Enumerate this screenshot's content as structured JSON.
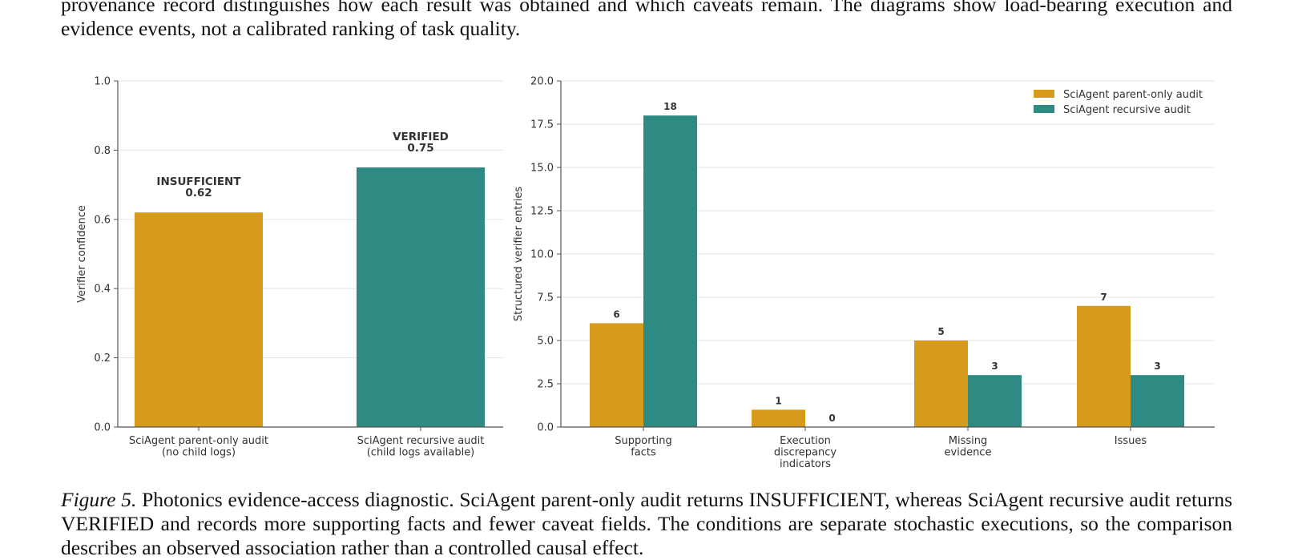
{
  "paper": {
    "top_paragraph": "provenance record distinguishes how each result was obtained and which caveats remain. The diagrams show load-bearing execution and evidence events, not a calibrated ranking of task quality.",
    "caption_label": "Figure 5.",
    "caption_text": "Photonics evidence-access diagnostic. SciAgent parent-only audit returns INSUFFICIENT, whereas SciAgent recursive audit returns VERIFIED and records more supporting facts and fewer caveat fields. The conditions are separate stochastic executions, so the comparison describes an observed association rather than a controlled causal effect."
  },
  "colors": {
    "parent": "#D79B1B",
    "recursive": "#2E8B84",
    "axis": "#555555",
    "grid": "#E6E6E6"
  },
  "chart_data": [
    {
      "type": "bar",
      "ylabel": "Verifier confidence",
      "ylim": [
        0,
        1.0
      ],
      "yticks": [
        "0.0",
        "0.2",
        "0.4",
        "0.6",
        "0.8",
        "1.0"
      ],
      "grid": true,
      "categories": [
        [
          "SciAgent parent-only audit",
          "(no child logs)"
        ],
        [
          "SciAgent recursive audit",
          "(child logs available)"
        ]
      ],
      "values": [
        0.62,
        0.75
      ],
      "bar_labels": [
        [
          "INSUFFICIENT",
          "0.62"
        ],
        [
          "VERIFIED",
          "0.75"
        ]
      ]
    },
    {
      "type": "bar",
      "ylabel": "Structured verifier entries",
      "ylim": [
        0,
        20.0
      ],
      "yticks": [
        "0.0",
        "2.5",
        "5.0",
        "7.5",
        "10.0",
        "12.5",
        "15.0",
        "17.5",
        "20.0"
      ],
      "grid": true,
      "legend_position": "top-right",
      "categories": [
        [
          "Supporting",
          "facts"
        ],
        [
          "Execution",
          "discrepancy",
          "indicators"
        ],
        [
          "Missing",
          "evidence"
        ],
        [
          "Issues"
        ]
      ],
      "series": [
        {
          "name": "SciAgent parent-only audit",
          "values": [
            6,
            1,
            5,
            7
          ]
        },
        {
          "name": "SciAgent recursive audit",
          "values": [
            18,
            0,
            3,
            3
          ]
        }
      ]
    }
  ]
}
